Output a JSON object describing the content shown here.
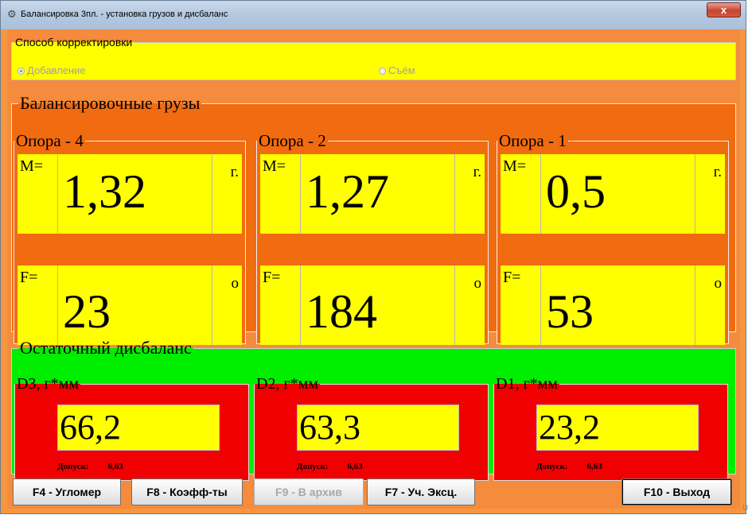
{
  "window": {
    "title": "Балансировка 3пл. - установка грузов и дисбаланс",
    "close_label": "x"
  },
  "correction": {
    "legend": "Способ корректировки",
    "options": [
      {
        "label": "Добавление",
        "selected": true
      },
      {
        "label": "Съём",
        "selected": false
      }
    ]
  },
  "weights": {
    "legend": "Балансировочные грузы",
    "supports": [
      {
        "title": "Опора - 4",
        "m_label": "M=",
        "m_value": "1,32",
        "m_unit": "г.",
        "f_label": "F=",
        "f_value": "23",
        "f_unit": "о"
      },
      {
        "title": "Опора - 2",
        "m_label": "M=",
        "m_value": "1,27",
        "m_unit": "г.",
        "f_label": "F=",
        "f_value": "184",
        "f_unit": "о"
      },
      {
        "title": "Опора - 1",
        "m_label": "M=",
        "m_value": "0,5",
        "m_unit": "г.",
        "f_label": "F=",
        "f_value": "53",
        "f_unit": "о"
      }
    ]
  },
  "residual": {
    "legend": "Остаточный дисбаланс",
    "items": [
      {
        "title": "D3, г*мм",
        "value": "66,2",
        "tol_label": "Допуск:",
        "tol_value": "6,63"
      },
      {
        "title": "D2, г*мм",
        "value": "63,3",
        "tol_label": "Допуск:",
        "tol_value": "6,63"
      },
      {
        "title": "D1, г*мм",
        "value": "23,2",
        "tol_label": "Допуск:",
        "tol_value": "6,63"
      }
    ]
  },
  "buttons": [
    {
      "label": "F4 - Угломер",
      "enabled": true
    },
    {
      "label": "F8 - Коэфф-ты",
      "enabled": true
    },
    {
      "label": "F9 - В архив",
      "enabled": false
    },
    {
      "label": "F7 - Уч. Эксц.",
      "enabled": true
    },
    {
      "label": "F10 - Выход",
      "enabled": true
    }
  ],
  "colors": {
    "window_bg": "#f58b3c",
    "correction_bg": "#ffff00",
    "weights_bg": "#f16b10",
    "value_bg": "#ffff00",
    "residual_bg": "#00ee00",
    "residual_box_bg": "#f00000"
  }
}
